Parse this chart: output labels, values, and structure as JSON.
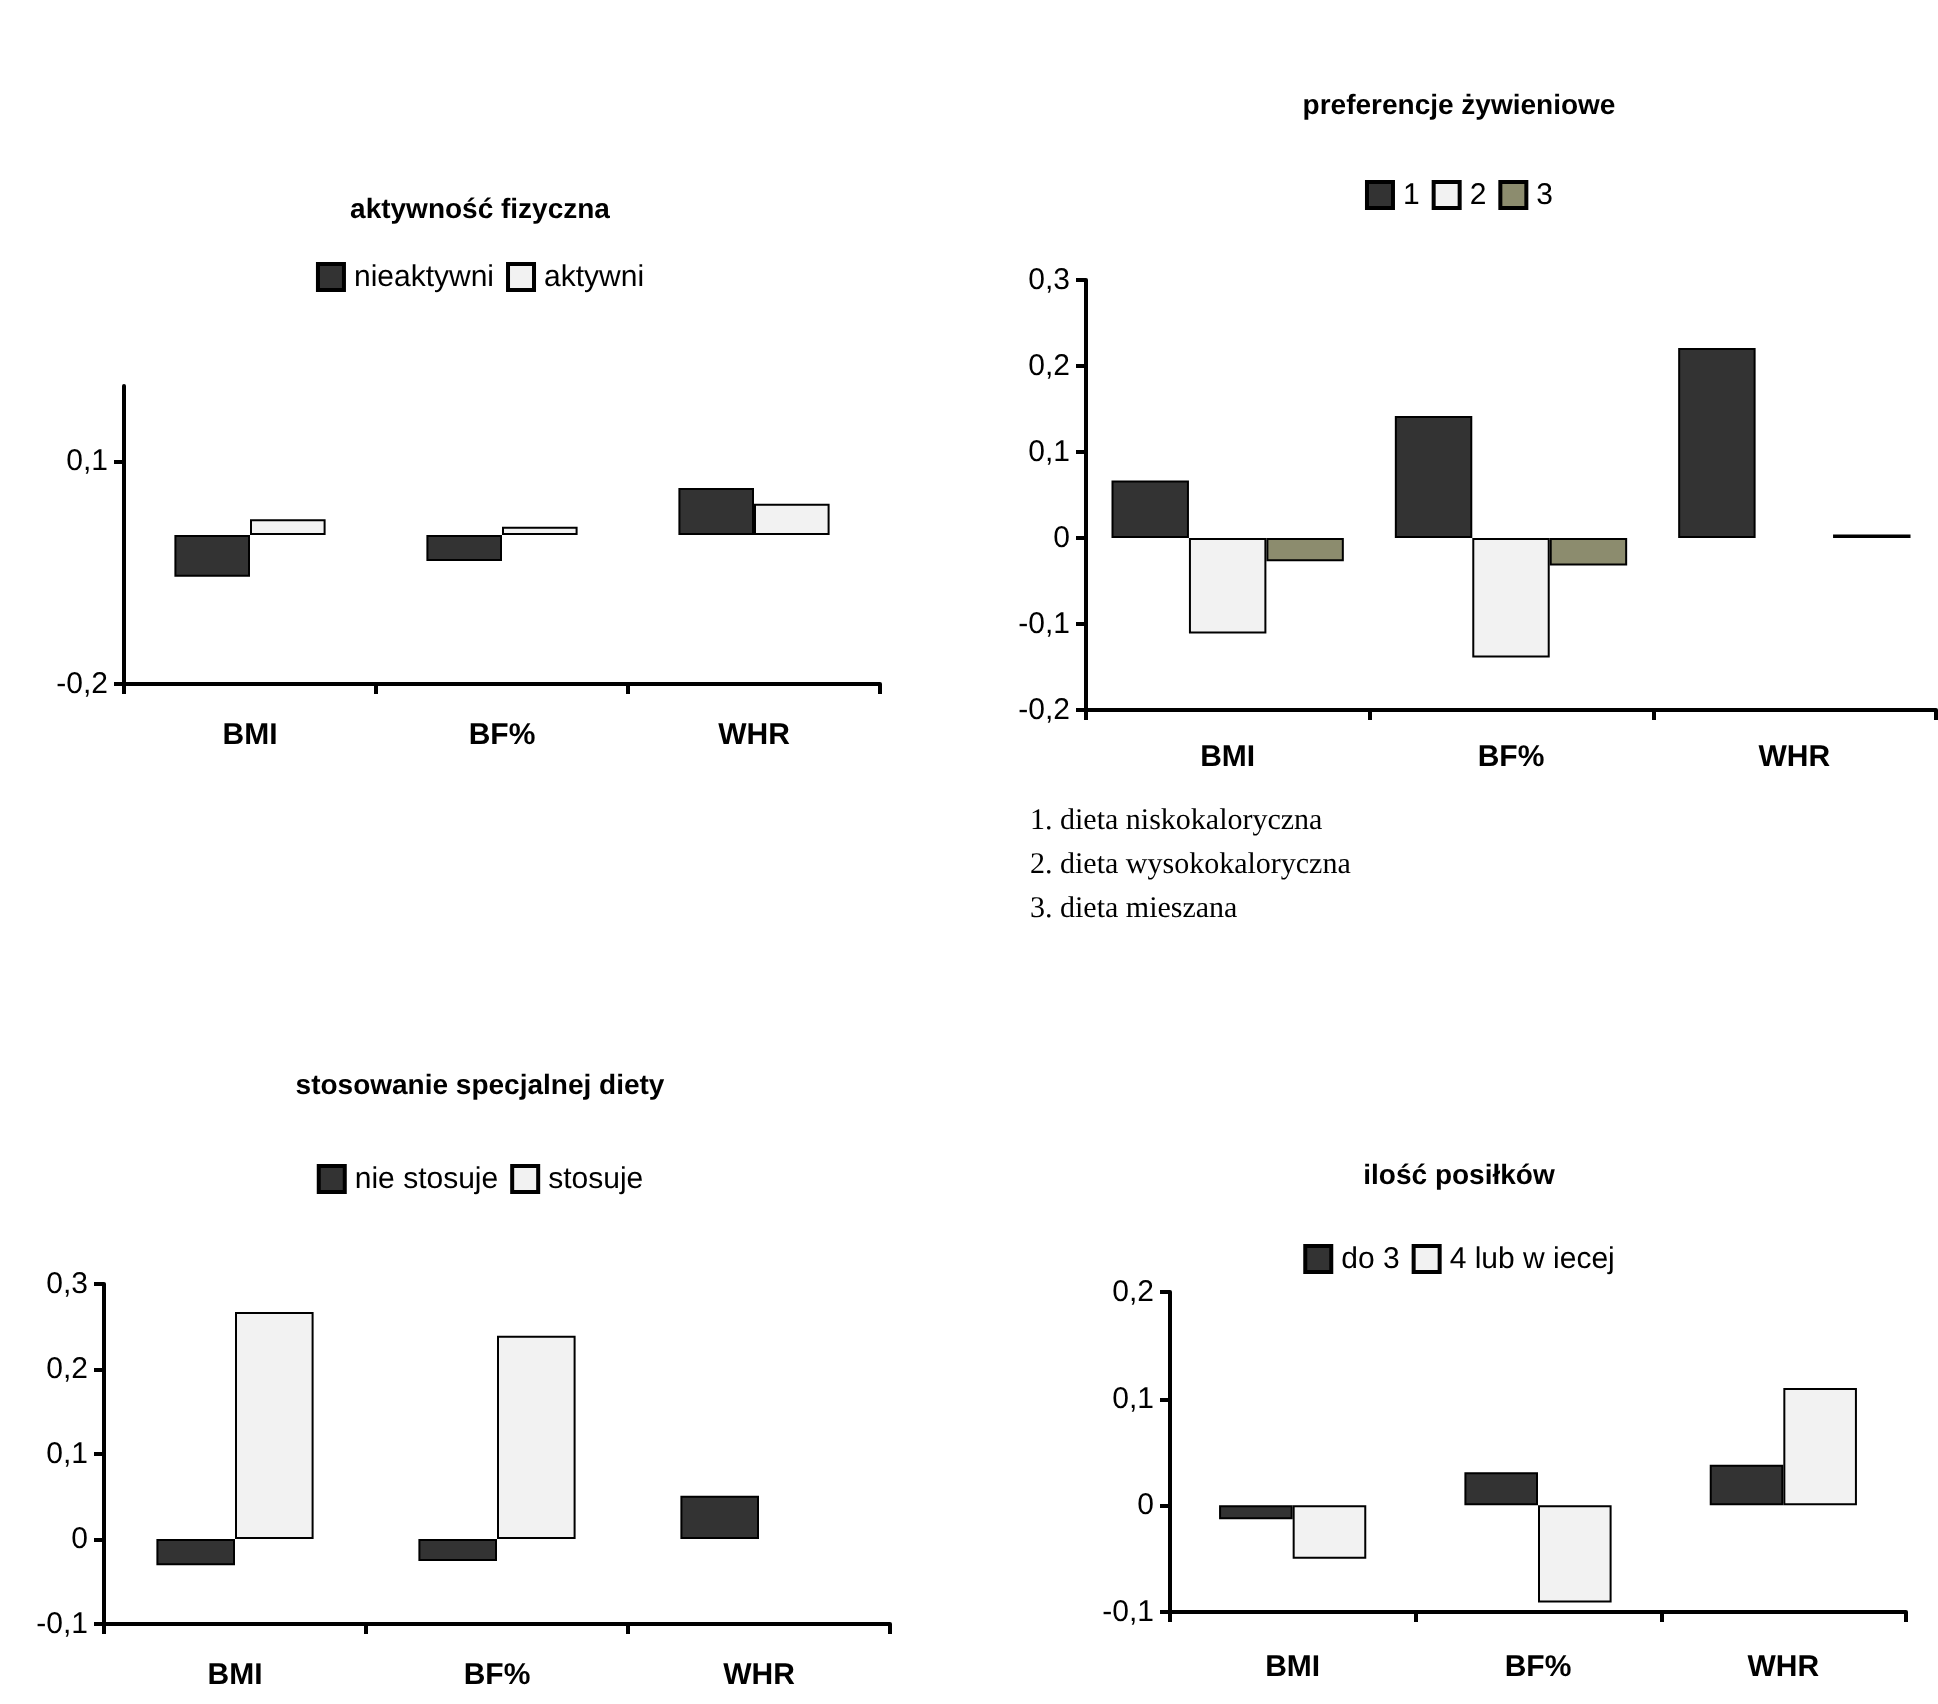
{
  "chart_data": [
    {
      "type": "bar",
      "title": "aktywność fizyczna",
      "categories": [
        "BMI",
        "BF%",
        "WHR"
      ],
      "series": [
        {
          "name": "nieaktywni",
          "color": "#333333",
          "values": [
            -0.056,
            -0.035,
            0.063
          ]
        },
        {
          "name": "aktywni",
          "color": "#f2f2f2",
          "values": [
            0.021,
            0.011,
            0.042
          ]
        }
      ],
      "ylim": [
        -0.2,
        0.2
      ],
      "yticks": [
        {
          "value": -0.2,
          "label": "-0,2"
        },
        {
          "value": 0.1,
          "label": "0,1"
        }
      ],
      "legend": "top",
      "grid": false
    },
    {
      "type": "bar",
      "title": "preferencje żywieniowe",
      "categories": [
        "BMI",
        "BF%",
        "WHR"
      ],
      "series": [
        {
          "name": "1",
          "color": "#333333",
          "values": [
            0.067,
            0.142,
            0.221
          ]
        },
        {
          "name": "2",
          "color": "#f2f2f2",
          "values": [
            -0.111,
            -0.139,
            null
          ]
        },
        {
          "name": "3",
          "color": "#8c8c6e",
          "values": [
            -0.027,
            -0.032,
            0.004
          ]
        }
      ],
      "ylim": [
        -0.2,
        0.3
      ],
      "yticks": [
        {
          "value": -0.2,
          "label": "-0,2"
        },
        {
          "value": -0.1,
          "label": "-0,1"
        },
        {
          "value": 0,
          "label": "0"
        },
        {
          "value": 0.1,
          "label": "0,1"
        },
        {
          "value": 0.2,
          "label": "0,2"
        },
        {
          "value": 0.3,
          "label": "0,3"
        }
      ],
      "legend": "top",
      "grid": false,
      "annotations": [
        "1. dieta niskokaloryczna",
        "2. dieta wysokokaloryczna",
        "3. dieta mieszana"
      ]
    },
    {
      "type": "bar",
      "title": "stosowanie specjalnej diety",
      "categories": [
        "BMI",
        "BF%",
        "WHR"
      ],
      "series": [
        {
          "name": "nie stosuje",
          "color": "#333333",
          "values": [
            -0.031,
            -0.026,
            0.051
          ]
        },
        {
          "name": "stosuje",
          "color": "#f2f2f2",
          "values": [
            0.267,
            0.239,
            null
          ]
        }
      ],
      "ylim": [
        -0.1,
        0.3
      ],
      "yticks": [
        {
          "value": -0.1,
          "label": "-0,1"
        },
        {
          "value": 0,
          "label": "0"
        },
        {
          "value": 0.1,
          "label": "0,1"
        },
        {
          "value": 0.2,
          "label": "0,2"
        },
        {
          "value": 0.3,
          "label": "0,3"
        }
      ],
      "legend": "top",
      "grid": false
    },
    {
      "type": "bar",
      "title": "ilość posiłków",
      "categories": [
        "BMI",
        "BF%",
        "WHR"
      ],
      "series": [
        {
          "name": "do 3",
          "color": "#333333",
          "values": [
            -0.013,
            0.031,
            0.038
          ]
        },
        {
          "name": "4 lub w iecej",
          "color": "#f2f2f2",
          "values": [
            -0.05,
            -0.091,
            0.11
          ]
        }
      ],
      "ylim": [
        -0.1,
        0.2
      ],
      "yticks": [
        {
          "value": -0.1,
          "label": "-0,1"
        },
        {
          "value": 0,
          "label": "0"
        },
        {
          "value": 0.1,
          "label": "0,1"
        },
        {
          "value": 0.2,
          "label": "0,2"
        }
      ],
      "legend": "top",
      "grid": false
    }
  ]
}
